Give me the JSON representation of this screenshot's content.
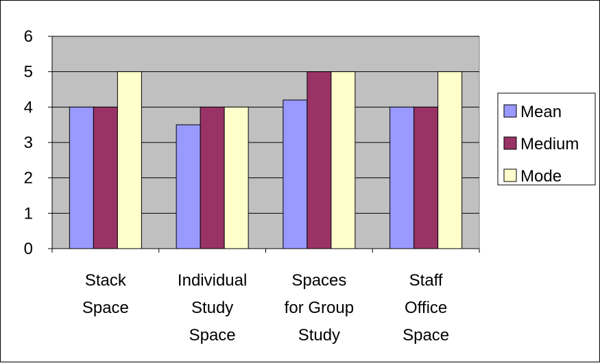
{
  "chart_data": {
    "type": "bar",
    "categories": [
      [
        "Stack",
        "Space"
      ],
      [
        "Individual",
        "Study",
        "Space"
      ],
      [
        "Spaces",
        "for Group",
        "Study"
      ],
      [
        "Staff",
        "Office",
        "Space"
      ]
    ],
    "series": [
      {
        "name": "Mean",
        "values": [
          4.0,
          3.5,
          4.2,
          4.0
        ],
        "color": "#9999ff"
      },
      {
        "name": "Medium",
        "values": [
          4,
          4,
          5,
          4
        ],
        "color": "#993366"
      },
      {
        "name": "Mode",
        "values": [
          5,
          4,
          5,
          5
        ],
        "color": "#ffffcc"
      }
    ],
    "ylim": [
      0,
      6
    ],
    "yticks": [
      "0",
      "1",
      "2",
      "3",
      "4",
      "5",
      "6"
    ],
    "plot_background": "#c0c0c0",
    "grid": true,
    "legend_position": "right"
  }
}
